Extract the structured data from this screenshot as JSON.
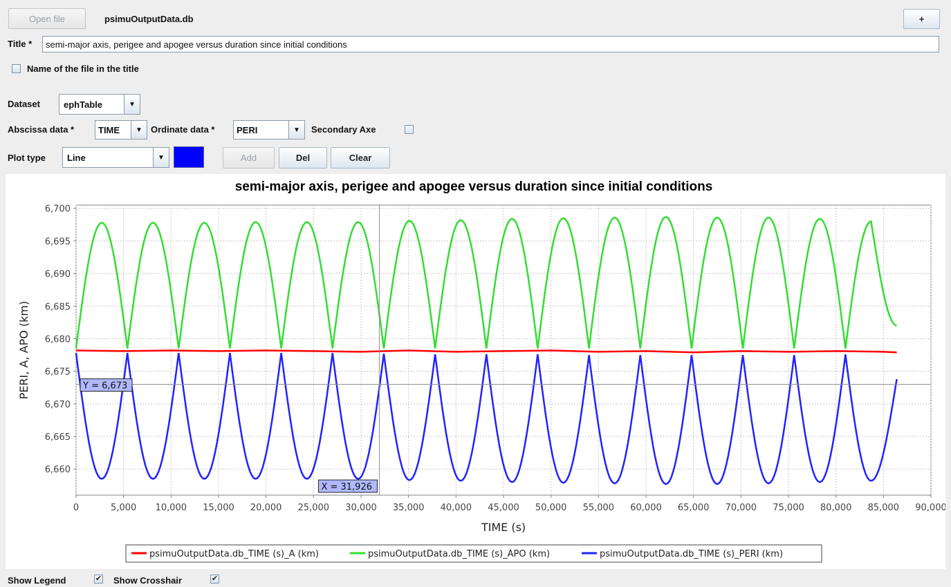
{
  "toolbar": {
    "open_label": "Open file",
    "file_name": "psimuOutputData.db",
    "plus_label": "+"
  },
  "title_field": {
    "label": "Title *",
    "value": "semi-major axis, perigee and apogee versus duration since initial conditions"
  },
  "name_in_title": {
    "label": "Name of the file in the title",
    "checked": false
  },
  "dataset": {
    "label": "Dataset",
    "value": "ephTable"
  },
  "abscissa": {
    "label": "Abscissa data *",
    "value": "TIME"
  },
  "ordinate": {
    "label": "Ordinate data *",
    "value": "PERI"
  },
  "secondary_axe": {
    "label": "Secondary Axe",
    "checked": false
  },
  "plot_type": {
    "label": "Plot type",
    "value": "Line",
    "color": "#0000ff"
  },
  "actions": {
    "add": "Add",
    "del": "Del",
    "clear": "Clear"
  },
  "bottom": {
    "show_legend": "Show Legend",
    "show_crosshair": "Show Crosshair",
    "legend_checked": true,
    "crosshair_checked": true,
    "check_mark": "✔"
  },
  "chart_data": {
    "type": "line",
    "title": "semi-major axis, perigee and apogee versus duration since initial conditions",
    "xlabel": "TIME (s)",
    "ylabel": "PERI, A, APO (km)",
    "xlim": [
      0,
      90000
    ],
    "ylim": [
      6656,
      6700.5
    ],
    "grid": true,
    "x_ticks": [
      "0",
      "5,000",
      "10,000",
      "15,000",
      "20,000",
      "25,000",
      "30,000",
      "35,000",
      "40,000",
      "45,000",
      "50,000",
      "55,000",
      "60,000",
      "65,000",
      "70,000",
      "75,000",
      "80,000",
      "85,000",
      "90,000"
    ],
    "y_ticks": [
      "6,700",
      "6,695",
      "6,690",
      "6,685",
      "6,680",
      "6,675",
      "6,670",
      "6,665",
      "6,660"
    ],
    "x_tick_values": [
      0,
      5000,
      10000,
      15000,
      20000,
      25000,
      30000,
      35000,
      40000,
      45000,
      50000,
      55000,
      60000,
      65000,
      70000,
      75000,
      80000,
      85000,
      90000
    ],
    "y_tick_values": [
      6700,
      6695,
      6690,
      6685,
      6680,
      6675,
      6670,
      6665,
      6660
    ],
    "series": [
      {
        "name": "psimuOutputData.db_TIME (s)_A (km)",
        "color": "#ff0000",
        "x": [
          0,
          5000,
          10000,
          15000,
          20000,
          25000,
          30000,
          35000,
          40000,
          45000,
          50000,
          55000,
          60000,
          65000,
          70000,
          75000,
          80000,
          85000,
          86400
        ],
        "y": [
          6678.2,
          6678.1,
          6678.2,
          6678.1,
          6678.2,
          6678.1,
          6678.0,
          6678.2,
          6678.0,
          6678.1,
          6678.2,
          6678.0,
          6678.1,
          6677.9,
          6678.1,
          6678.0,
          6678.1,
          6678.0,
          6677.9
        ]
      },
      {
        "name": "psimuOutputData.db_TIME (s)_APO (km)",
        "color": "#33dd33",
        "peaks_x": [
          2700,
          8100,
          13500,
          18900,
          24300,
          29700,
          35100,
          40500,
          45900,
          51300,
          56700,
          62100,
          67500,
          72900,
          78300,
          83700
        ],
        "peaks_y": [
          6697.8,
          6697.8,
          6697.8,
          6697.9,
          6697.9,
          6697.9,
          6698.1,
          6698.2,
          6698.4,
          6698.5,
          6698.6,
          6698.7,
          6698.6,
          6698.6,
          6698.4,
          6698.0
        ],
        "troughs_x": [
          0,
          5400,
          10800,
          16200,
          21600,
          27000,
          32400,
          37800,
          43200,
          48600,
          54000,
          59400,
          64800,
          70200,
          75600,
          81000
        ],
        "troughs_y": [
          6678.5,
          6678.5,
          6678.5,
          6678.5,
          6678.5,
          6678.5,
          6678.5,
          6678.5,
          6678.5,
          6678.5,
          6678.5,
          6678.5,
          6678.5,
          6678.5,
          6678.5,
          6678.5
        ],
        "end": [
          86400,
          6682.0
        ]
      },
      {
        "name": "psimuOutputData.db_TIME (s)_PERI (km)",
        "color": "#2222ff",
        "peaks_x": [
          0,
          5400,
          10800,
          16200,
          21600,
          27000,
          32400,
          37800,
          43200,
          48600,
          54000,
          59400,
          64800,
          70200,
          75600,
          81000
        ],
        "peaks_y": [
          6677.8,
          6677.8,
          6677.8,
          6677.8,
          6677.8,
          6677.8,
          6677.7,
          6677.6,
          6677.6,
          6677.6,
          6677.5,
          6677.5,
          6677.5,
          6677.5,
          6677.5,
          6677.6
        ],
        "troughs_x": [
          2700,
          8100,
          13500,
          18900,
          24300,
          29700,
          35100,
          40500,
          45900,
          51300,
          56700,
          62100,
          67500,
          72900,
          78300,
          83700
        ],
        "troughs_y": [
          6658.5,
          6658.5,
          6658.5,
          6658.5,
          6658.5,
          6658.5,
          6658.3,
          6658.2,
          6658.0,
          6657.9,
          6657.8,
          6657.7,
          6657.7,
          6657.8,
          6658.0,
          6658.2
        ],
        "end": [
          86400,
          6673.8
        ]
      }
    ],
    "crosshair": {
      "x": 31926,
      "y": 6673,
      "x_label": "X = 31,926",
      "y_label": "Y = 6,673"
    },
    "legend_position": "bottom"
  }
}
